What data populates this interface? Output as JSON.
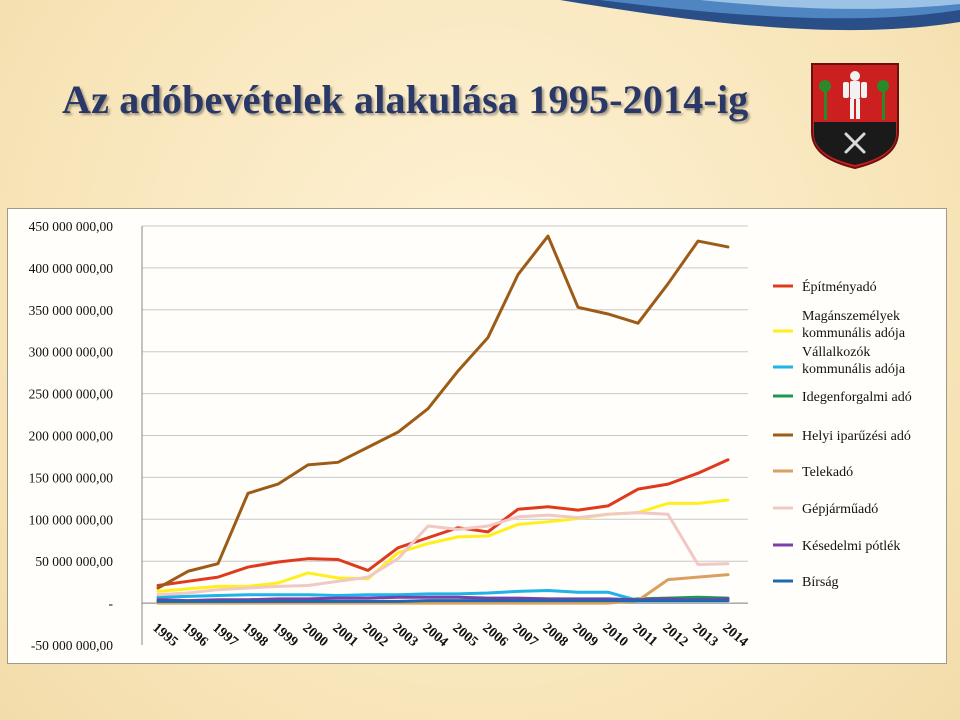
{
  "title": "Az adóbevételek alakulása 1995-2014-ig",
  "chart_data": {
    "type": "line",
    "title": "",
    "xlabel": "",
    "ylabel": "",
    "ylim": [
      -50000000,
      450000000
    ],
    "y_ticks": [
      -50000000,
      0,
      50000000,
      100000000,
      150000000,
      200000000,
      250000000,
      300000000,
      350000000,
      400000000,
      450000000
    ],
    "y_tick_labels": [
      "-50 000 000,00",
      "-",
      "50 000 000,00",
      "100 000 000,00",
      "150 000 000,00",
      "200 000 000,00",
      "250 000 000,00",
      "300 000 000,00",
      "350 000 000,00",
      "400 000 000,00",
      "450 000 000,00"
    ],
    "categories": [
      "1995",
      "1996",
      "1997",
      "1998",
      "1999",
      "2000",
      "2001",
      "2002",
      "2003",
      "2004",
      "2005",
      "2006",
      "2007",
      "2008",
      "2009",
      "2010",
      "2011",
      "2012",
      "2013",
      "2014"
    ],
    "grid": "horizontal",
    "legend_position": "right",
    "series": [
      {
        "name": "Építményadó",
        "color": "#e03a1e",
        "values": [
          21000000,
          26000000,
          31000000,
          43000000,
          49000000,
          53000000,
          52000000,
          39000000,
          66000000,
          78000000,
          90000000,
          85000000,
          112000000,
          115000000,
          111000000,
          116000000,
          136000000,
          142000000,
          155000000,
          171000000
        ]
      },
      {
        "name": "Magánszemélyek kommunális adója",
        "color": "#ffef1e",
        "values": [
          14000000,
          17000000,
          20000000,
          20000000,
          24000000,
          36000000,
          30000000,
          29000000,
          60000000,
          71000000,
          79000000,
          80000000,
          94000000,
          97000000,
          101000000,
          106000000,
          108000000,
          119000000,
          119000000,
          123000000
        ]
      },
      {
        "name": "Vállalkozók kommunális adója",
        "color": "#1eb4e6",
        "values": [
          7000000,
          8000000,
          9000000,
          10000000,
          10000000,
          10000000,
          9000000,
          10000000,
          10000000,
          11000000,
          11000000,
          12000000,
          14000000,
          15000000,
          13000000,
          13000000,
          3000000,
          3000000,
          3000000,
          3000000
        ]
      },
      {
        "name": "Idegenforgalmi adó",
        "color": "#1e9a50",
        "values": [
          1000000,
          1000000,
          1000000,
          1000000,
          1000000,
          1000000,
          1000000,
          1000000,
          1000000,
          1000000,
          1000000,
          1000000,
          1000000,
          2000000,
          2000000,
          2000000,
          5000000,
          6000000,
          7000000,
          6000000
        ]
      },
      {
        "name": "Helyi iparűzési adó",
        "color": "#9c5c18",
        "values": [
          18000000,
          38000000,
          47000000,
          131000000,
          142000000,
          165000000,
          168000000,
          186000000,
          204000000,
          232000000,
          277000000,
          317000000,
          392000000,
          438000000,
          353000000,
          345000000,
          334000000,
          381000000,
          432000000,
          425000000
        ]
      },
      {
        "name": "Telekadó",
        "color": "#dba060",
        "values": [
          0,
          0,
          0,
          0,
          0,
          0,
          0,
          0,
          0,
          0,
          0,
          0,
          0,
          0,
          0,
          0,
          3000000,
          28000000,
          31000000,
          34000000
        ]
      },
      {
        "name": "Gépjárműadó",
        "color": "#f0c8c4",
        "values": [
          10000000,
          12000000,
          16000000,
          18000000,
          20000000,
          21000000,
          26000000,
          31000000,
          53000000,
          92000000,
          88000000,
          92000000,
          103000000,
          105000000,
          102000000,
          106000000,
          108000000,
          106000000,
          46000000,
          47000000
        ]
      },
      {
        "name": "Késedelmi pótlék",
        "color": "#7a3fa8",
        "values": [
          4000000,
          3000000,
          4000000,
          4000000,
          5000000,
          5000000,
          6000000,
          6000000,
          7000000,
          7000000,
          7000000,
          6000000,
          6000000,
          5000000,
          5000000,
          5000000,
          4000000,
          5000000,
          4000000,
          5000000
        ]
      },
      {
        "name": "Bírság",
        "color": "#1e6ab0",
        "values": [
          2000000,
          2000000,
          2000000,
          2000000,
          2000000,
          2000000,
          2000000,
          2000000,
          2000000,
          3000000,
          3000000,
          3000000,
          3000000,
          3000000,
          3000000,
          3000000,
          3000000,
          3000000,
          3000000,
          3000000
        ]
      }
    ]
  }
}
